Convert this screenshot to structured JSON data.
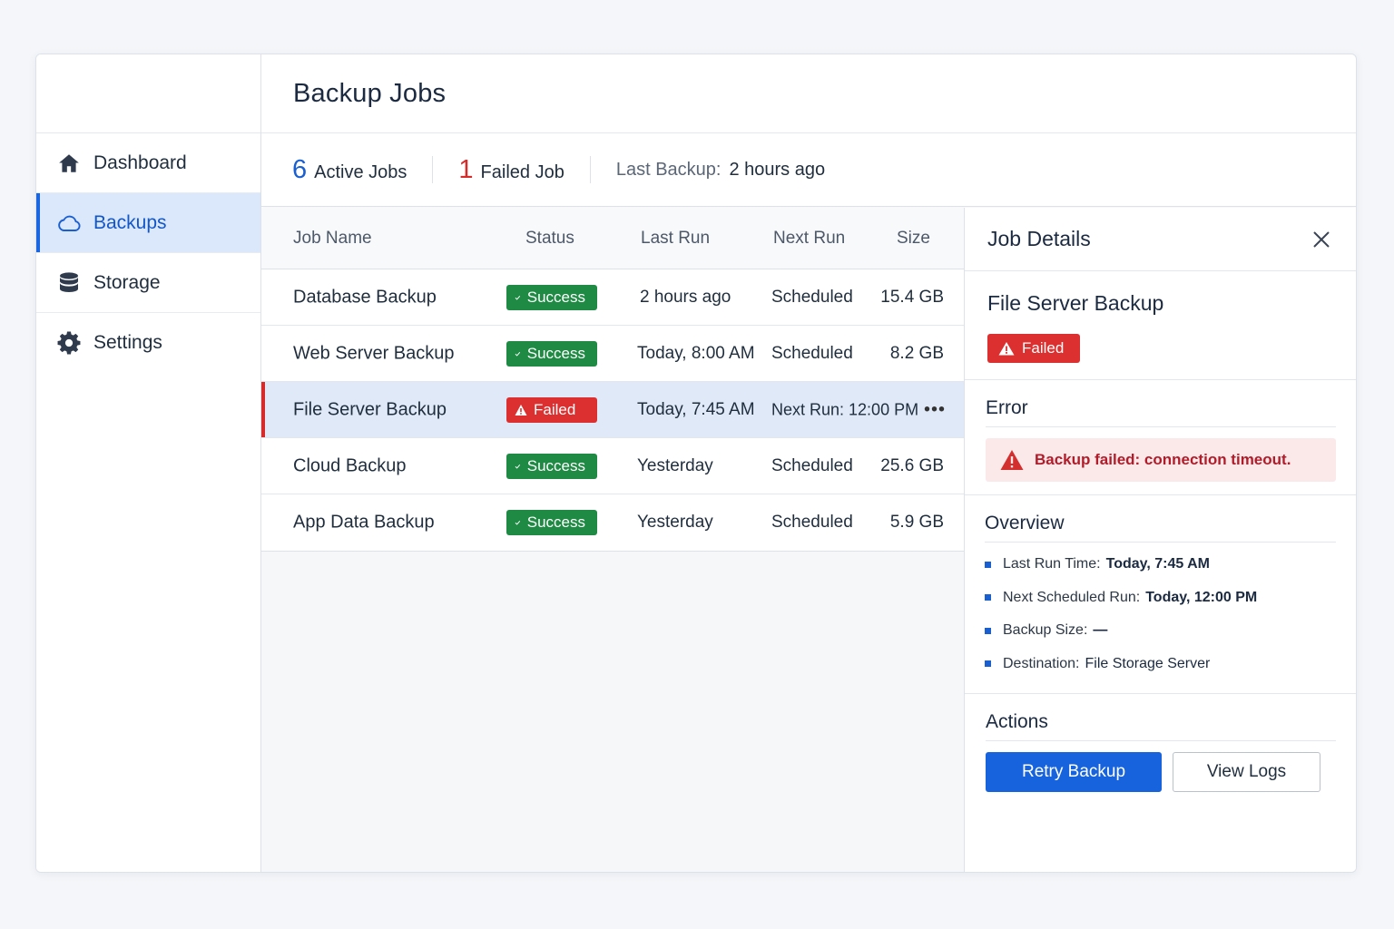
{
  "sidebar": {
    "items": [
      {
        "label": "Dashboard",
        "icon": "home-icon"
      },
      {
        "label": "Backups",
        "icon": "cloud-icon"
      },
      {
        "label": "Storage",
        "icon": "database-icon"
      },
      {
        "label": "Settings",
        "icon": "gear-icon"
      }
    ],
    "active_index": 1
  },
  "header": {
    "title": "Backup Jobs"
  },
  "stats": {
    "active_count": "6",
    "active_label": "Active Jobs",
    "failed_count": "1",
    "failed_label": "Failed Job",
    "last_backup_label": "Last Backup:",
    "last_backup_value": "2 hours ago"
  },
  "table": {
    "columns": [
      "Job Name",
      "Status",
      "Last Run",
      "Next Run",
      "Size"
    ],
    "rows": [
      {
        "name": "Database Backup",
        "status": "Success",
        "last_run": "2 hours ago",
        "next_run": "Scheduled",
        "size": "15.4 GB"
      },
      {
        "name": "Web Server Backup",
        "status": "Success",
        "last_run": "Today, 8:00 AM",
        "next_run": "Scheduled",
        "size": "8.2 GB"
      },
      {
        "name": "File Server Backup",
        "status": "Failed",
        "last_run": "Today, 7:45 AM",
        "next_run": "Next Run: 12:00 PM",
        "size": "•••"
      },
      {
        "name": "Cloud Backup",
        "status": "Success",
        "last_run": "Yesterday",
        "next_run": "Scheduled",
        "size": "25.6 GB"
      },
      {
        "name": "App Data Backup",
        "status": "Success",
        "last_run": "Yesterday",
        "next_run": "Scheduled",
        "size": "5.9 GB"
      }
    ]
  },
  "details": {
    "title": "Job Details",
    "job_name": "File Server Backup",
    "status": "Failed",
    "error_title": "Error",
    "error_message": "Backup failed: connection timeout.",
    "overview_title": "Overview",
    "overview": [
      {
        "label": "Last Run Time:",
        "value": "Today, 7:45 AM"
      },
      {
        "label": "Next Scheduled Run:",
        "value": "Today, 12:00 PM"
      },
      {
        "label": "Backup Size:",
        "value": "—"
      },
      {
        "label": "Destination:",
        "value": "File Storage Server"
      }
    ],
    "actions_title": "Actions",
    "retry_label": "Retry Backup",
    "logs_label": "View Logs"
  },
  "colors": {
    "accent": "#1663dd",
    "success": "#1e8a43",
    "danger": "#dc3030",
    "active_nav_bg": "#dbe7fb"
  }
}
